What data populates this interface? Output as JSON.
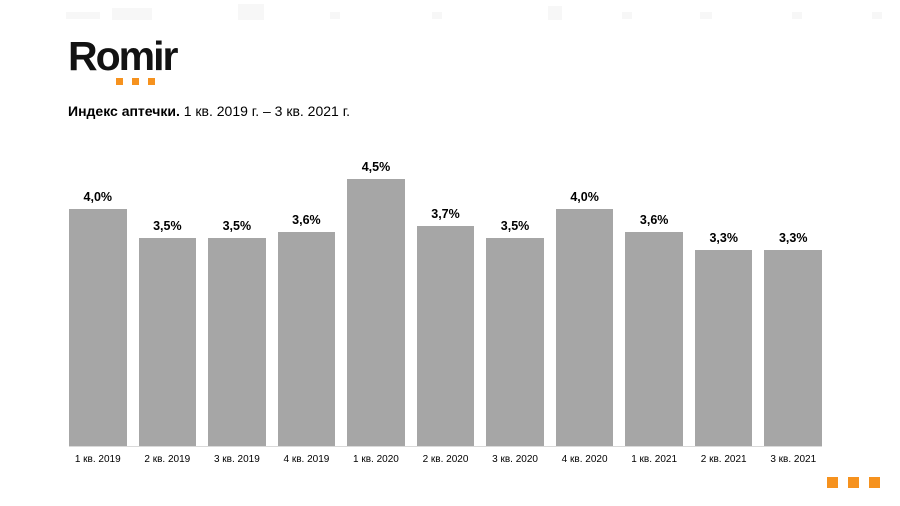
{
  "logo": {
    "text": "Romir",
    "dot_color": "#F6921E"
  },
  "title": {
    "bold": "Индекс аптечки.",
    "regular": " 1 кв. 2019 г. – 3 кв. 2021 г."
  },
  "chart_data": {
    "type": "bar",
    "title": "Индекс аптечки. 1 кв. 2019 г. – 3 кв. 2021 г.",
    "categories": [
      "1 кв. 2019",
      "2 кв. 2019",
      "3 кв. 2019",
      "4 кв. 2019",
      "1 кв. 2020",
      "2 кв. 2020",
      "3 кв. 2020",
      "4 кв. 2020",
      "1 кв. 2021",
      "2 кв. 2021",
      "3 кв. 2021"
    ],
    "values": [
      4.0,
      3.5,
      3.5,
      3.6,
      4.5,
      3.7,
      3.5,
      4.0,
      3.6,
      3.3,
      3.3
    ],
    "value_labels": [
      "4,0%",
      "3,5%",
      "3,5%",
      "3,6%",
      "4,5%",
      "3,7%",
      "3,5%",
      "4,0%",
      "3,6%",
      "3,3%",
      "3,3%"
    ],
    "xlabel": "",
    "ylabel": "",
    "ylim": [
      0,
      4.5
    ],
    "grid": false,
    "legend": false,
    "bar_color": "#A6A6A6",
    "axis_line_color": "#D9D9D9"
  },
  "footer": {
    "dot_color": "#F6921E"
  }
}
